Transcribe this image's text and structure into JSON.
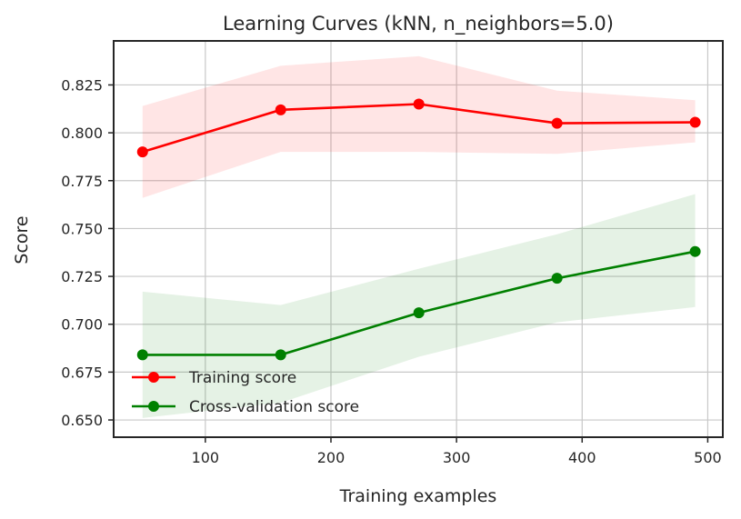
{
  "chart_data": {
    "type": "line",
    "title": "Learning Curves (kNN, n_neighbors=5.0)",
    "xlabel": "Training examples",
    "ylabel": "Score",
    "xlim": [
      27,
      512
    ],
    "ylim": [
      0.641,
      0.848
    ],
    "xticks": [
      100,
      200,
      300,
      400,
      500
    ],
    "yticks": [
      0.65,
      0.675,
      0.7,
      0.725,
      0.75,
      0.775,
      0.8,
      0.825
    ],
    "ytick_labels": [
      "0.650",
      "0.675",
      "0.700",
      "0.725",
      "0.750",
      "0.775",
      "0.800",
      "0.825"
    ],
    "grid": true,
    "legend_position": "lower-left",
    "x": [
      50,
      160,
      270,
      380,
      490
    ],
    "series": [
      {
        "name": "Training score",
        "color": "#ff0000",
        "band_color": "#ff0000",
        "values": [
          0.79,
          0.812,
          0.815,
          0.805,
          0.8055
        ],
        "upper": [
          0.814,
          0.835,
          0.84,
          0.822,
          0.817
        ],
        "lower": [
          0.766,
          0.79,
          0.79,
          0.789,
          0.795
        ]
      },
      {
        "name": "Cross-validation score",
        "color": "#008000",
        "band_color": "#008000",
        "values": [
          0.684,
          0.684,
          0.706,
          0.724,
          0.738
        ],
        "upper": [
          0.717,
          0.71,
          0.729,
          0.747,
          0.768
        ],
        "lower": [
          0.651,
          0.659,
          0.683,
          0.701,
          0.709
        ]
      }
    ]
  }
}
